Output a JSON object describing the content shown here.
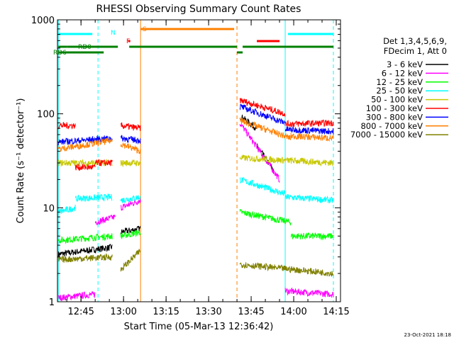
{
  "chart_data": {
    "type": "line",
    "title": "RHESSI Observing Summary Count Rates",
    "xlabel": "Start Time (05-Mar-13 12:36:42)",
    "ylabel": "Count Rate (s⁻¹ detector⁻¹)",
    "y_scale": "log",
    "ylim": [
      1,
      1000
    ],
    "y_ticks": [
      {
        "v": 1,
        "label": "1"
      },
      {
        "v": 10,
        "label": "10"
      },
      {
        "v": 100,
        "label": "100"
      },
      {
        "v": 1000,
        "label": "1000"
      }
    ],
    "x_range": [
      "12:36:42",
      "14:16:30"
    ],
    "x_ticks": [
      "12:45",
      "13:00",
      "13:15",
      "13:30",
      "13:45",
      "14:00",
      "14:15"
    ],
    "legend_header": [
      "Det 1,3,4,5,6,9,",
      "FDecim 1, Att 0"
    ],
    "legend_placement": "right",
    "timestamp": "23-Oct-2021 18:18",
    "series": [
      {
        "name": "3 - 6 keV",
        "color": "#000000",
        "segments": [
          {
            "x": [
              "12:37",
              "12:56"
            ],
            "y": [
              3.2,
              3.8
            ]
          },
          {
            "x": [
              "12:59",
              "13:06"
            ],
            "y": [
              5.5,
              6
            ]
          },
          {
            "x": [
              "13:41",
              "13:47"
            ],
            "y": [
              95,
              70
            ]
          },
          {
            "x": [
              "13:47",
              "13:53"
            ],
            "y": [
              45,
              25
            ]
          }
        ]
      },
      {
        "name": "6 - 12 keV",
        "color": "#ff00ff",
        "segments": [
          {
            "x": [
              "12:37",
              "12:50"
            ],
            "y": [
              1.1,
              1.2
            ]
          },
          {
            "x": [
              "12:50",
              "12:57"
            ],
            "y": [
              7,
              8
            ]
          },
          {
            "x": [
              "12:59",
              "13:06"
            ],
            "y": [
              10,
              12
            ]
          },
          {
            "x": [
              "13:41",
              "13:55"
            ],
            "y": [
              80,
              20
            ]
          },
          {
            "x": [
              "13:57",
              "14:14"
            ],
            "y": [
              1.3,
              1.2
            ]
          }
        ]
      },
      {
        "name": "12 - 25 keV",
        "color": "#00ff00",
        "segments": [
          {
            "x": [
              "12:37",
              "12:56"
            ],
            "y": [
              4.5,
              5
            ]
          },
          {
            "x": [
              "12:59",
              "13:06"
            ],
            "y": [
              5,
              5.5
            ]
          },
          {
            "x": [
              "13:41",
              "13:59"
            ],
            "y": [
              9,
              7
            ]
          },
          {
            "x": [
              "13:59",
              "14:14"
            ],
            "y": [
              5,
              5
            ]
          }
        ]
      },
      {
        "name": "25 - 50 keV",
        "color": "#00ffff",
        "segments": [
          {
            "x": [
              "12:37",
              "12:43"
            ],
            "y": [
              9,
              10
            ]
          },
          {
            "x": [
              "12:43",
              "12:56"
            ],
            "y": [
              12.5,
              13
            ]
          },
          {
            "x": [
              "12:59",
              "13:06"
            ],
            "y": [
              12,
              13
            ]
          },
          {
            "x": [
              "13:41",
              "13:57"
            ],
            "y": [
              20,
              14
            ]
          },
          {
            "x": [
              "13:57",
              "14:14"
            ],
            "y": [
              13,
              12
            ]
          }
        ]
      },
      {
        "name": "50 - 100 keV",
        "color": "#c8c800",
        "segments": [
          {
            "x": [
              "12:37",
              "12:56"
            ],
            "y": [
              30,
              30
            ]
          },
          {
            "x": [
              "12:59",
              "13:06"
            ],
            "y": [
              30,
              30
            ]
          },
          {
            "x": [
              "13:41",
              "14:14"
            ],
            "y": [
              34,
              30
            ]
          }
        ]
      },
      {
        "name": "100 - 300 keV",
        "color": "#ff0000",
        "segments": [
          {
            "x": [
              "12:37",
              "12:43"
            ],
            "y": [
              75,
              75
            ]
          },
          {
            "x": [
              "12:43",
              "12:50"
            ],
            "y": [
              27,
              27
            ]
          },
          {
            "x": [
              "12:50",
              "12:56"
            ],
            "y": [
              30,
              30
            ]
          },
          {
            "x": [
              "12:59",
              "13:06"
            ],
            "y": [
              75,
              70
            ]
          },
          {
            "x": [
              "13:41",
              "13:57"
            ],
            "y": [
              140,
              100
            ]
          },
          {
            "x": [
              "13:57",
              "14:14"
            ],
            "y": [
              78,
              80
            ]
          }
        ]
      },
      {
        "name": "300 - 800 keV",
        "color": "#0000ff",
        "segments": [
          {
            "x": [
              "12:37",
              "12:56"
            ],
            "y": [
              50,
              55
            ]
          },
          {
            "x": [
              "12:59",
              "13:06"
            ],
            "y": [
              55,
              52
            ]
          },
          {
            "x": [
              "13:41",
              "13:57"
            ],
            "y": [
              120,
              80
            ]
          },
          {
            "x": [
              "13:57",
              "14:14"
            ],
            "y": [
              68,
              65
            ]
          }
        ]
      },
      {
        "name": "800 - 7000 keV",
        "color": "#ff8000",
        "segments": [
          {
            "x": [
              "12:37",
              "12:56"
            ],
            "y": [
              42,
              52
            ]
          },
          {
            "x": [
              "12:59",
              "13:06"
            ],
            "y": [
              48,
              40
            ]
          },
          {
            "x": [
              "13:41",
              "13:59"
            ],
            "y": [
              85,
              55
            ]
          },
          {
            "x": [
              "13:59",
              "14:14"
            ],
            "y": [
              58,
              55
            ]
          }
        ]
      },
      {
        "name": "7000 - 15000 keV",
        "color": "#808000",
        "segments": [
          {
            "x": [
              "12:37",
              "12:56"
            ],
            "y": [
              2.8,
              3
            ]
          },
          {
            "x": [
              "12:59",
              "13:06"
            ],
            "y": [
              2.2,
              3.5
            ]
          },
          {
            "x": [
              "13:41",
              "14:14"
            ],
            "y": [
              2.5,
              2
            ]
          }
        ]
      }
    ],
    "flags": [
      {
        "label": "N",
        "color": "#00ffff",
        "segments": [
          [
            "12:37",
            "12:49"
          ],
          [
            "13:58",
            "14:14"
          ]
        ]
      },
      {
        "label": "F",
        "color": "#ff0000",
        "segments": [
          [
            "13:02",
            "13:02"
          ],
          [
            "13:47",
            "13:55"
          ]
        ]
      },
      {
        "label": "S",
        "color": "#ff8000",
        "segments": [
          [
            "13:06",
            "13:39"
          ]
        ]
      },
      {
        "label": "RD0",
        "color": "#008000",
        "segments": [
          [
            "12:37",
            "12:40"
          ],
          [
            "12:40",
            "12:58"
          ],
          [
            "13:02",
            "13:40"
          ],
          [
            "13:42",
            "14:14"
          ]
        ]
      },
      {
        "label": "RD6",
        "color": "#008000",
        "segments": [
          [
            "12:37",
            "12:53"
          ],
          [
            "13:40",
            "13:42"
          ]
        ]
      }
    ],
    "vlines": [
      {
        "x": "12:37",
        "color": "#00ffff",
        "style": "solid"
      },
      {
        "x": "12:51",
        "color": "#00ffff",
        "style": "dashed"
      },
      {
        "x": "13:06",
        "color": "#ff8000",
        "style": "solid"
      },
      {
        "x": "13:40",
        "color": "#ff8000",
        "style": "dashed"
      },
      {
        "x": "13:57",
        "color": "#00ffff",
        "style": "solid"
      },
      {
        "x": "14:14",
        "color": "#00ffff",
        "style": "dashed"
      }
    ]
  }
}
